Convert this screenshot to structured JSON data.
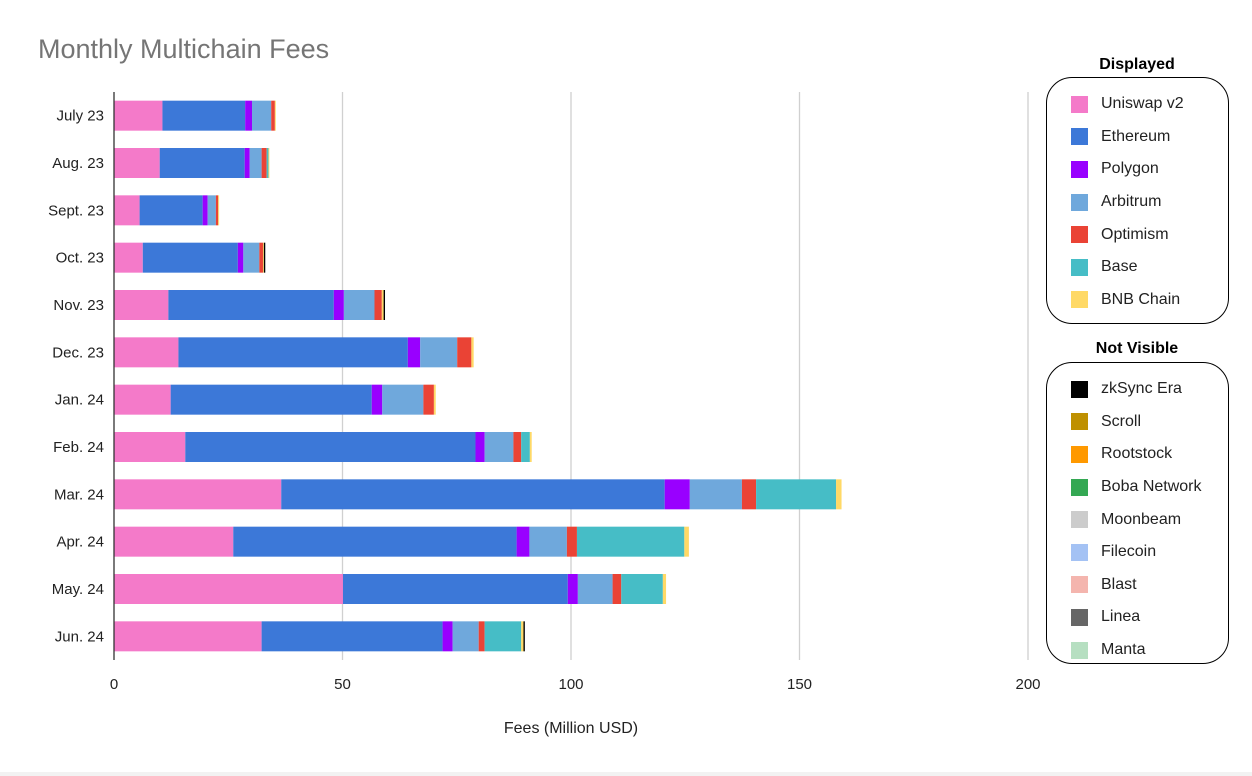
{
  "chart_data": {
    "type": "bar",
    "orientation": "horizontal",
    "stacked": true,
    "title": "Monthly Multichain Fees",
    "xlabel": "Fees (Million USD)",
    "ylabel": "",
    "xlim": [
      0,
      200
    ],
    "xticks": [
      0,
      50,
      100,
      150,
      200
    ],
    "grid": true,
    "categories": [
      "July 23",
      "Aug. 23",
      "Sept. 23",
      "Oct. 23",
      "Nov. 23",
      "Dec. 23",
      "Jan. 24",
      "Feb. 24",
      "Mar. 24",
      "Apr. 24",
      "May. 24",
      "Jun. 24"
    ],
    "series": [
      {
        "name": "Uniswap v2",
        "color": "#f47ac9",
        "values": [
          10.6,
          10.0,
          5.6,
          6.3,
          11.9,
          14.1,
          12.4,
          15.6,
          36.6,
          26.1,
          50.1,
          32.3
        ]
      },
      {
        "name": "Ethereum",
        "color": "#3c78d8",
        "values": [
          18.1,
          18.6,
          13.8,
          20.8,
          36.2,
          50.2,
          44.0,
          63.5,
          83.9,
          62.0,
          49.2,
          39.6
        ]
      },
      {
        "name": "Polygon",
        "color": "#9900ff",
        "values": [
          1.5,
          1.1,
          1.1,
          1.2,
          2.2,
          2.7,
          2.3,
          2.0,
          5.5,
          2.8,
          2.2,
          2.2
        ]
      },
      {
        "name": "Arbitrum",
        "color": "#6fa8dc",
        "values": [
          4.2,
          2.6,
          1.8,
          3.5,
          6.7,
          8.1,
          9.0,
          6.3,
          11.4,
          8.2,
          7.6,
          5.7
        ]
      },
      {
        "name": "Optimism",
        "color": "#ea4335",
        "values": [
          0.8,
          1.1,
          0.5,
          0.8,
          1.6,
          3.1,
          2.3,
          1.7,
          3.1,
          2.2,
          1.9,
          1.3
        ]
      },
      {
        "name": "Base",
        "color": "#46bdc6",
        "values": [
          0,
          0.4,
          0,
          0,
          0,
          0,
          0,
          1.9,
          17.5,
          23.5,
          9.1,
          8.0
        ]
      },
      {
        "name": "BNB Chain",
        "color": "#ffd966",
        "values": [
          0.2,
          0.2,
          0.2,
          0.2,
          0.4,
          0.5,
          0.4,
          0.4,
          1.2,
          1.0,
          0.7,
          0.5
        ]
      },
      {
        "name": "zkSync Era",
        "color": "#000000",
        "values": [
          0,
          0,
          0,
          0.3,
          0.3,
          0,
          0,
          0,
          0,
          0,
          0,
          0.3
        ]
      },
      {
        "name": "Scroll",
        "color": "#bf9000",
        "values": [
          0,
          0,
          0,
          0,
          0,
          0,
          0,
          0,
          0,
          0,
          0,
          0
        ]
      },
      {
        "name": "Rootstock",
        "color": "#ff9900",
        "values": [
          0,
          0,
          0,
          0,
          0,
          0,
          0,
          0,
          0,
          0,
          0,
          0
        ]
      },
      {
        "name": "Boba Network",
        "color": "#34a853",
        "values": [
          0,
          0,
          0,
          0,
          0,
          0,
          0,
          0,
          0,
          0,
          0,
          0
        ]
      },
      {
        "name": "Moonbeam",
        "color": "#cccccc",
        "values": [
          0,
          0,
          0,
          0,
          0,
          0,
          0,
          0,
          0,
          0,
          0,
          0
        ]
      },
      {
        "name": "Filecoin",
        "color": "#a4c2f4",
        "values": [
          0,
          0,
          0,
          0,
          0,
          0,
          0,
          0,
          0,
          0,
          0,
          0
        ]
      },
      {
        "name": "Blast",
        "color": "#f4b5ae",
        "values": [
          0,
          0,
          0,
          0,
          0,
          0,
          0,
          0,
          0,
          0,
          0,
          0
        ]
      },
      {
        "name": "Linea",
        "color": "#666666",
        "values": [
          0,
          0,
          0,
          0,
          0,
          0,
          0,
          0,
          0,
          0,
          0,
          0
        ]
      },
      {
        "name": "Manta",
        "color": "#b6dfc1",
        "values": [
          0,
          0,
          0,
          0,
          0,
          0,
          0,
          0,
          0,
          0,
          0,
          0
        ]
      }
    ],
    "legend_placement": "right"
  },
  "legend": {
    "displayed_heading": "Displayed",
    "displayed_items": [
      "Uniswap v2",
      "Ethereum",
      "Polygon",
      "Arbitrum",
      "Optimism",
      "Base",
      "BNB Chain"
    ],
    "hidden_heading": "Not Visible",
    "hidden_items": [
      "zkSync Era",
      "Scroll",
      "Rootstock",
      "Boba Network",
      "Moonbeam",
      "Filecoin",
      "Blast",
      "Linea",
      "Manta"
    ]
  }
}
